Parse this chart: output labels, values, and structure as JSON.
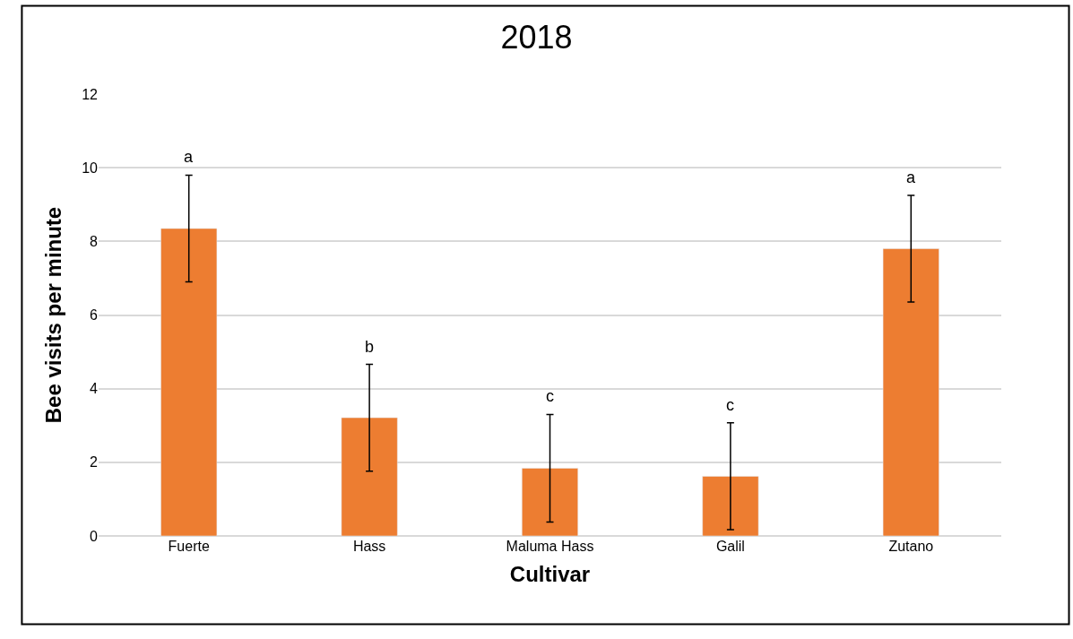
{
  "chart_data": {
    "type": "bar",
    "title": "2018",
    "xlabel": "Cultivar",
    "ylabel": "Bee visits per minute",
    "categories": [
      "Fuerte",
      "Hass",
      "Maluma Hass",
      "Galil",
      "Zutano"
    ],
    "values": [
      8.35,
      3.21,
      1.84,
      1.62,
      7.8
    ],
    "errors": [
      1.45,
      1.45,
      1.46,
      1.45,
      1.45
    ],
    "color": "#ed7d31",
    "ylim": [
      0,
      12
    ],
    "yticks": [
      0,
      2,
      4,
      6,
      8,
      10,
      12
    ],
    "grid": "y",
    "legend": false,
    "annotations": [
      "a",
      "b",
      "c",
      "c",
      "a"
    ]
  }
}
